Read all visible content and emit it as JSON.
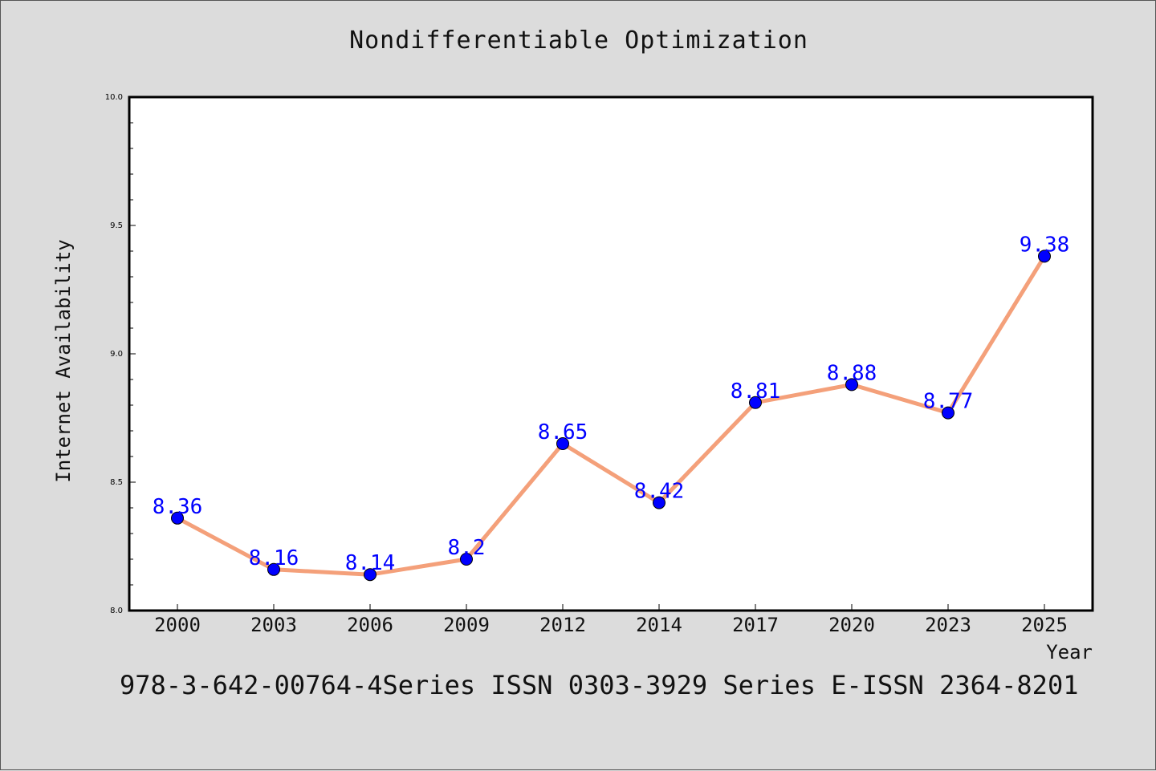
{
  "chart_data": {
    "type": "line",
    "title": "Nondifferentiable Optimization",
    "xlabel": "Year",
    "ylabel": "Internet Availability",
    "categories": [
      "2000",
      "2003",
      "2006",
      "2009",
      "2012",
      "2014",
      "2017",
      "2020",
      "2023",
      "2025"
    ],
    "series": [
      {
        "values": [
          8.36,
          8.16,
          8.14,
          8.2,
          8.65,
          8.42,
          8.81,
          8.88,
          8.77,
          9.38
        ],
        "line_color": "#f4a07a",
        "marker_color": "#0000ff",
        "label_color": "#0000ff"
      }
    ],
    "ylim": [
      8.0,
      10.0
    ],
    "yticks": [
      "8.0",
      "8.5",
      "9.0",
      "9.5",
      "10.0"
    ],
    "grid": false
  },
  "footer": "978-3-642-00764-4Series ISSN 0303-3929 Series E-ISSN 2364-8201",
  "colors": {
    "background": "#dcdcdc",
    "plot_background": "#ffffff"
  }
}
